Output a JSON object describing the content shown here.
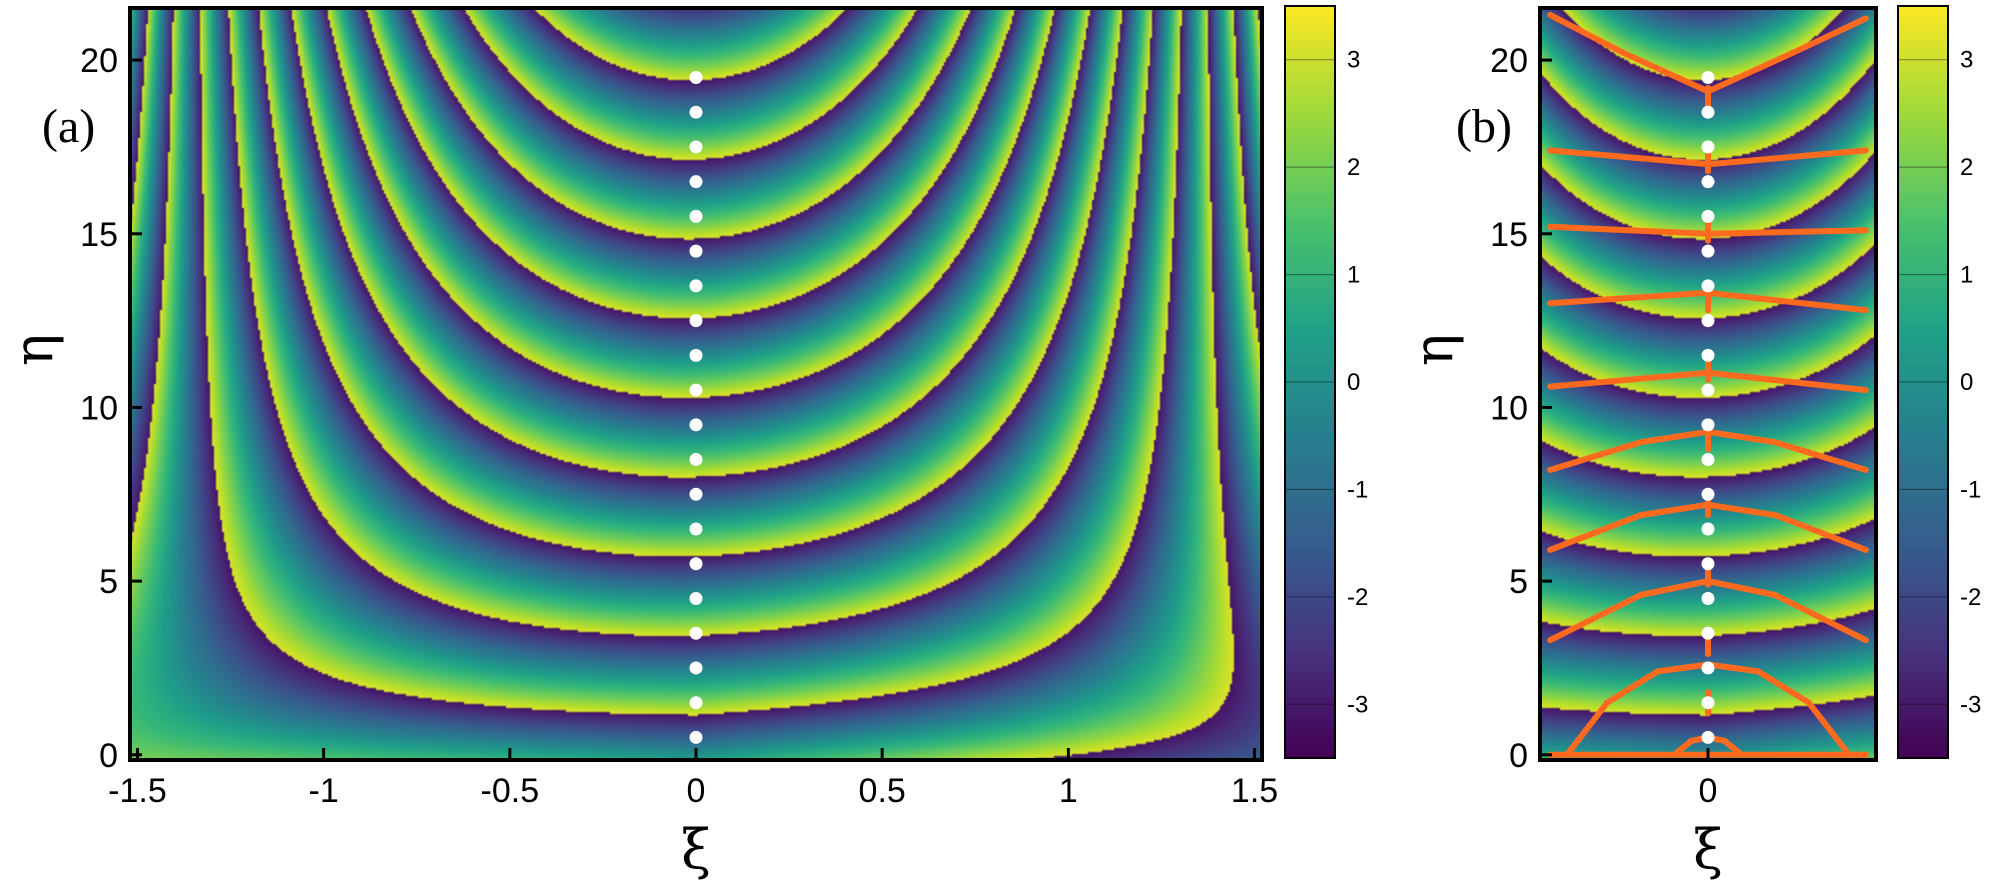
{
  "chart_data": [
    {
      "type": "heatmap",
      "panel_label": "(a)",
      "xlabel": "ξ",
      "ylabel": "η",
      "xlim": [
        -1.52,
        1.52
      ],
      "ylim": [
        -0.15,
        21.5
      ],
      "xticks": [
        -1.5,
        -1,
        -0.5,
        0,
        0.5,
        1,
        1.5
      ],
      "xtick_labels": [
        "-1.5",
        "-1",
        "-0.5",
        "0",
        "0.5",
        "1",
        "1.5"
      ],
      "yticks": [
        0,
        5,
        10,
        15,
        20
      ],
      "ytick_labels": [
        "0",
        "5",
        "10",
        "15",
        "20"
      ],
      "colorbar": {
        "range": [
          -3.5,
          3.5
        ],
        "ticks": [
          -3,
          -2,
          -1,
          0,
          1,
          2,
          3
        ],
        "tick_labels": [
          "-3",
          "-2",
          "-1",
          "0",
          "1",
          "2",
          "3"
        ]
      },
      "markers": {
        "color": "#ffffff",
        "points": [
          [
            0,
            0.5
          ],
          [
            0,
            1.5
          ],
          [
            0,
            2.5
          ],
          [
            0,
            3.5
          ],
          [
            0,
            4.5
          ],
          [
            0,
            5.5
          ],
          [
            0,
            6.5
          ],
          [
            0,
            7.5
          ],
          [
            0,
            8.5
          ],
          [
            0,
            9.5
          ],
          [
            0,
            10.5
          ],
          [
            0,
            11.5
          ],
          [
            0,
            12.5
          ],
          [
            0,
            13.5
          ],
          [
            0,
            14.5
          ],
          [
            0,
            15.5
          ],
          [
            0,
            16.5
          ],
          [
            0,
            17.5
          ],
          [
            0,
            18.5
          ],
          [
            0,
            19.5
          ]
        ]
      },
      "branch_cuts": {
        "color": "#ff6a1f",
        "curves": []
      }
    },
    {
      "type": "heatmap",
      "panel_label": "(b)",
      "xlabel": "ξ",
      "ylabel": "η",
      "xlim": [
        -0.5,
        0.5
      ],
      "ylim": [
        -0.15,
        21.5
      ],
      "xticks": [
        0
      ],
      "xtick_labels": [
        "0"
      ],
      "yticks": [
        0,
        5,
        10,
        15,
        20
      ],
      "ytick_labels": [
        "0",
        "5",
        "10",
        "15",
        "20"
      ],
      "colorbar": {
        "range": [
          -3.5,
          3.5
        ],
        "ticks": [
          -3,
          -2,
          -1,
          0,
          1,
          2,
          3
        ],
        "tick_labels": [
          "-3",
          "-2",
          "-1",
          "0",
          "1",
          "2",
          "3"
        ]
      },
      "markers": {
        "color": "#ffffff",
        "points": [
          [
            0,
            0.5
          ],
          [
            0,
            1.5
          ],
          [
            0,
            2.5
          ],
          [
            0,
            3.5
          ],
          [
            0,
            4.5
          ],
          [
            0,
            5.5
          ],
          [
            0,
            6.5
          ],
          [
            0,
            7.5
          ],
          [
            0,
            8.5
          ],
          [
            0,
            9.5
          ],
          [
            0,
            10.5
          ],
          [
            0,
            11.5
          ],
          [
            0,
            12.5
          ],
          [
            0,
            13.5
          ],
          [
            0,
            14.5
          ],
          [
            0,
            15.5
          ],
          [
            0,
            16.5
          ],
          [
            0,
            17.5
          ],
          [
            0,
            18.5
          ],
          [
            0,
            19.5
          ]
        ]
      },
      "branch_cuts": {
        "color": "#ff6a1f",
        "curves": [
          {
            "x": [
              -0.47,
              -0.25,
              0,
              0.25,
              0.47
            ],
            "y": [
              21.3,
              20.2,
              19.1,
              20.2,
              21.2
            ]
          },
          {
            "x": [
              -0.47,
              0,
              0.47
            ],
            "y": [
              17.4,
              17.0,
              17.4
            ]
          },
          {
            "x": [
              -0.47,
              0,
              0.47
            ],
            "y": [
              15.2,
              15.0,
              15.1
            ]
          },
          {
            "x": [
              -0.47,
              0,
              0.47
            ],
            "y": [
              13.0,
              13.3,
              12.8
            ]
          },
          {
            "x": [
              -0.47,
              0,
              0.47
            ],
            "y": [
              10.6,
              11.0,
              10.5
            ]
          },
          {
            "x": [
              -0.47,
              -0.2,
              0,
              0.2,
              0.47
            ],
            "y": [
              8.2,
              9.0,
              9.3,
              9.0,
              8.2
            ]
          },
          {
            "x": [
              -0.47,
              -0.2,
              0,
              0.2,
              0.47
            ],
            "y": [
              5.9,
              6.9,
              7.2,
              6.9,
              5.9
            ]
          },
          {
            "x": [
              -0.47,
              -0.2,
              0,
              0.2,
              0.47
            ],
            "y": [
              3.3,
              4.6,
              5.0,
              4.6,
              3.3
            ]
          },
          {
            "x": [
              -0.42,
              -0.3,
              -0.15,
              0,
              0.15,
              0.3,
              0.42
            ],
            "y": [
              0.0,
              1.5,
              2.4,
              2.6,
              2.4,
              1.5,
              0.0
            ]
          },
          {
            "x": [
              -0.1,
              -0.05,
              0,
              0.05,
              0.1
            ],
            "y": [
              0.0,
              0.4,
              0.5,
              0.4,
              0.0
            ]
          },
          {
            "x": [
              -0.47,
              0.47
            ],
            "y": [
              0.0,
              0.0
            ]
          },
          {
            "x": [
              0,
              0
            ],
            "y": [
              1.2,
              1.8
            ]
          },
          {
            "x": [
              0,
              0
            ],
            "y": [
              2.9,
              3.4
            ]
          },
          {
            "x": [
              0,
              0
            ],
            "y": [
              4.9,
              5.4
            ]
          },
          {
            "x": [
              0,
              0
            ],
            "y": [
              6.9,
              7.4
            ]
          },
          {
            "x": [
              0,
              0
            ],
            "y": [
              8.8,
              9.3
            ]
          },
          {
            "x": [
              0,
              0
            ],
            "y": [
              10.8,
              11.3
            ]
          },
          {
            "x": [
              0,
              0
            ],
            "y": [
              12.8,
              13.3
            ]
          },
          {
            "x": [
              0,
              0
            ],
            "y": [
              14.8,
              15.3
            ]
          },
          {
            "x": [
              0,
              0
            ],
            "y": [
              16.8,
              17.3
            ]
          },
          {
            "x": [
              0,
              0
            ],
            "y": [
              18.7,
              19.2
            ]
          }
        ]
      }
    }
  ]
}
